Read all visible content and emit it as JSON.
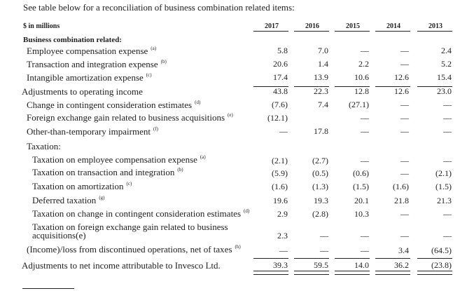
{
  "intro": "See table below for a reconciliation of business combination related items:",
  "table": {
    "unit_label": "$ in millions",
    "years": [
      "2017",
      "2016",
      "2015",
      "2014",
      "2013"
    ],
    "section_label": "Business combination related:",
    "rows": [
      {
        "label": "Employee compensation expense",
        "note": "(a)",
        "values": [
          "5.8",
          "7.0",
          "—",
          "—",
          "2.4"
        ]
      },
      {
        "label": "Transaction and integration expense",
        "note": "(b)",
        "values": [
          "20.6",
          "1.4",
          "2.2",
          "—",
          "5.2"
        ]
      },
      {
        "label": "Intangible amortization expense",
        "note": "(c)",
        "values": [
          "17.4",
          "13.9",
          "10.6",
          "12.6",
          "15.4"
        ]
      },
      {
        "label": "Adjustments to operating income",
        "note": "",
        "values": [
          "43.8",
          "22.3",
          "12.8",
          "12.6",
          "23.0"
        ]
      },
      {
        "label": "Change in contingent consideration estimates",
        "note": "(d)",
        "values": [
          "(7.6)",
          "7.4",
          "(27.1)",
          "—",
          "—"
        ]
      },
      {
        "label": "Foreign exchange gain related to business acquisitions",
        "note": "(e)",
        "values": [
          "(12.1)",
          "",
          "—",
          "—",
          "—"
        ]
      },
      {
        "label": "Other-than-temporary impairment",
        "note": "(f)",
        "values": [
          "—",
          "17.8",
          "—",
          "—",
          "—"
        ]
      },
      {
        "label": "Taxation:",
        "note": "",
        "values": [
          "",
          "",
          "",
          "",
          ""
        ]
      },
      {
        "label": "Taxation on employee compensation expense",
        "note": "(a)",
        "values": [
          "(2.1)",
          "(2.7)",
          "—",
          "—",
          "—"
        ]
      },
      {
        "label": "Taxation on transaction and integration",
        "note": "(b)",
        "values": [
          "(5.9)",
          "(0.5)",
          "(0.6)",
          "—",
          "(2.1)"
        ]
      },
      {
        "label": "Taxation on amortization",
        "note": "(c)",
        "values": [
          "(1.6)",
          "(1.3)",
          "(1.5)",
          "(1.6)",
          "(1.5)"
        ]
      },
      {
        "label": "Deferred taxation",
        "note": "(g)",
        "values": [
          "19.6",
          "19.3",
          "20.1",
          "21.8",
          "21.3"
        ]
      },
      {
        "label": "Taxation on change in contingent consideration estimates",
        "note": "(d)",
        "values": [
          "2.9",
          "(2.8)",
          "10.3",
          "—",
          "—"
        ]
      },
      {
        "label": "Taxation on foreign exchange gain related to business acquisitions",
        "note": "(e)",
        "values": [
          "2.3",
          "—",
          "—",
          "—",
          "—"
        ]
      },
      {
        "label": "(Income)/loss from discontinued operations, net of taxes",
        "note": "(h)",
        "values": [
          "—",
          "—",
          "—",
          "3.4",
          "(64.5)"
        ]
      },
      {
        "label": "Adjustments to net income attributable to Invesco Ltd.",
        "note": "",
        "values": [
          "39.3",
          "59.5",
          "14.0",
          "36.2",
          "(23.8)"
        ]
      }
    ]
  }
}
